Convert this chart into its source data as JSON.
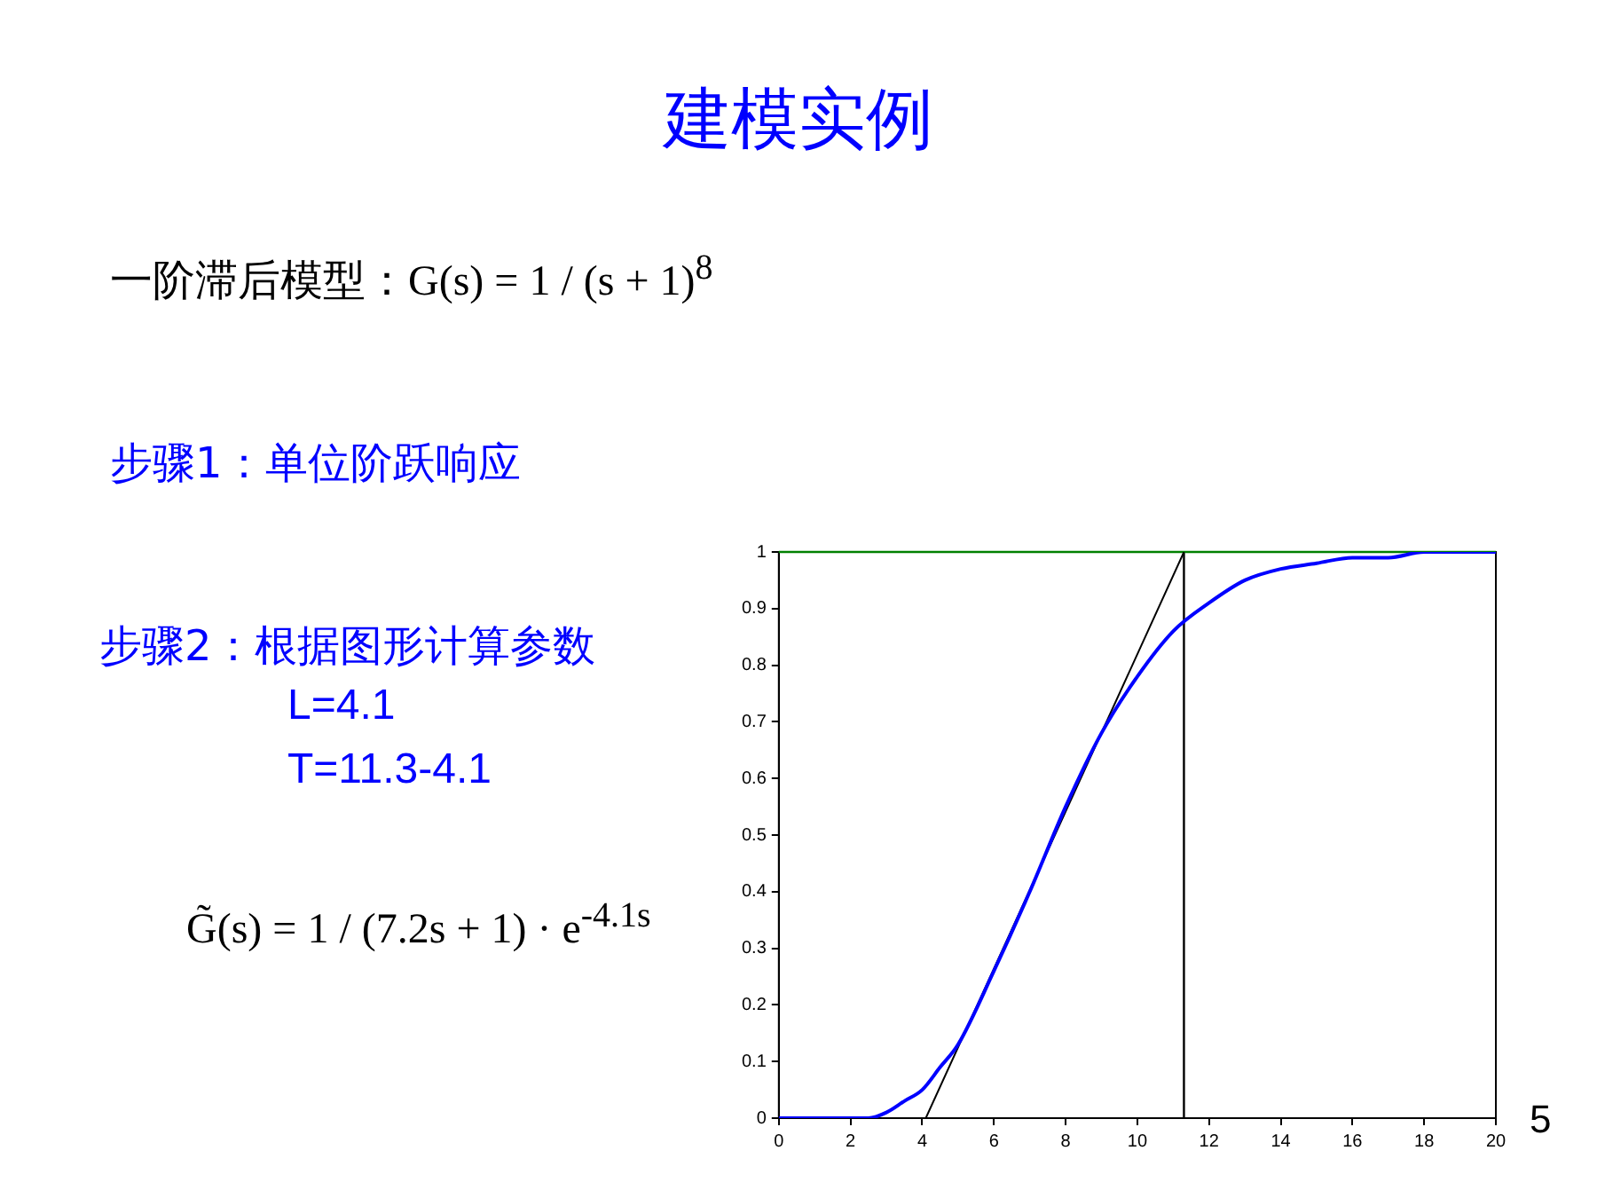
{
  "chart_data": {
    "type": "line",
    "title": "建模实例",
    "annotations": [
      "一阶滞后模型：G(s) = 1 / (s + 1)$^{8}$",
      "步骤1：单位阶跃响应",
      "步骤2：根据图形计算参数",
      "L=4.1",
      "T=11.3-4.1",
      "G̃(s) = 1 / (7.2s + 1) · e$^{-4.1s}$",
      "5"
    ],
    "series": [
      {
        "color": "#0000ff",
        "x": [
          0,
          1,
          2,
          2.5,
          3,
          3.5,
          4,
          4.5,
          5,
          6,
          7,
          8,
          9,
          10,
          11,
          12,
          13,
          14,
          15,
          16,
          17,
          18,
          19,
          20
        ],
        "values": [
          0,
          0,
          0,
          0,
          0.01,
          0.03,
          0.05,
          0.09,
          0.13,
          0.26,
          0.4,
          0.55,
          0.68,
          0.78,
          0.86,
          0.91,
          0.95,
          0.97,
          0.98,
          0.99,
          0.99,
          1,
          1,
          1
        ]
      },
      {
        "color": "#000000",
        "x": [
          4.1,
          11.3
        ],
        "values": [
          0,
          1
        ]
      }
    ],
    "ref_lines": [
      {
        "axis": "x",
        "value": 11.3,
        "color": "#000000"
      },
      {
        "axis": "y",
        "value": 1,
        "color": "#008000"
      }
    ],
    "xlim": [
      0,
      20
    ],
    "xticks": [
      0,
      2,
      4,
      6,
      8,
      10,
      12,
      14,
      16,
      18,
      20
    ],
    "ylim": [
      0,
      1
    ],
    "yticks": [
      0,
      0.1,
      0.2,
      0.3,
      0.4,
      0.5,
      0.6,
      0.7,
      0.8,
      0.9,
      1
    ],
    "grid": false,
    "legend": false,
    "marker": "none",
    "line_style": "solid"
  }
}
